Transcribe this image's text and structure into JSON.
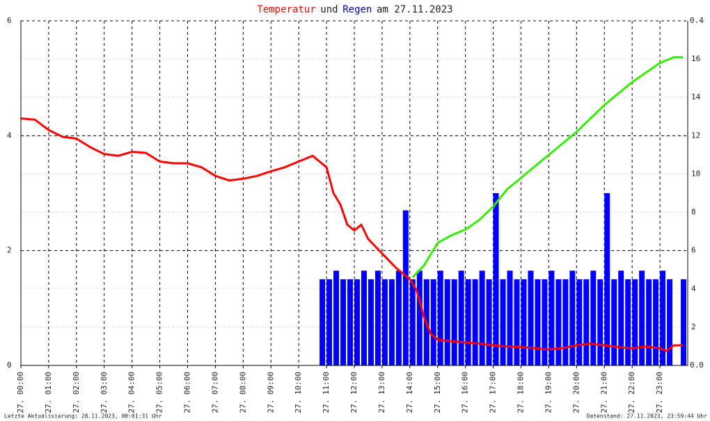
{
  "chart_data": {
    "type": "line",
    "title_connector": "und",
    "title_date": "am 27.11.2023",
    "footer_left": "Letzte Aktualisierung: 28.11.2023, 00:01:31 Uhr",
    "footer_right": "Datenstand: 27.11.2023, 23:59:44 Uhr",
    "xlim": [
      0,
      24
    ],
    "xticks": [
      {
        "value": 0,
        "label": "27. 00:00"
      },
      {
        "value": 1,
        "label": "27. 01:00"
      },
      {
        "value": 2,
        "label": "27. 02:00"
      },
      {
        "value": 3,
        "label": "27. 03:00"
      },
      {
        "value": 4,
        "label": "27. 04:00"
      },
      {
        "value": 5,
        "label": "27. 05:00"
      },
      {
        "value": 6,
        "label": "27. 06:00"
      },
      {
        "value": 7,
        "label": "27. 07:00"
      },
      {
        "value": 8,
        "label": "27. 08:00"
      },
      {
        "value": 9,
        "label": "27. 09:00"
      },
      {
        "value": 10,
        "label": "27. 10:00"
      },
      {
        "value": 11,
        "label": "27. 11:00"
      },
      {
        "value": 12,
        "label": "27. 12:00"
      },
      {
        "value": 13,
        "label": "27. 13:00"
      },
      {
        "value": 14,
        "label": "27. 14:00"
      },
      {
        "value": 15,
        "label": "27. 15:00"
      },
      {
        "value": 16,
        "label": "27. 16:00"
      },
      {
        "value": 17,
        "label": "27. 17:00"
      },
      {
        "value": 18,
        "label": "27. 18:00"
      },
      {
        "value": 19,
        "label": "27. 19:00"
      },
      {
        "value": 20,
        "label": "27. 20:00"
      },
      {
        "value": 21,
        "label": "27. 21:00"
      },
      {
        "value": 22,
        "label": "27. 22:00"
      },
      {
        "value": 23,
        "label": "27. 23:00"
      }
    ],
    "ylim": [
      0,
      6
    ],
    "yticks": [
      0,
      2,
      4,
      6
    ],
    "y2lim": [
      0,
      18
    ],
    "y2ticks": [
      2,
      4,
      6,
      8,
      10,
      12,
      14,
      16
    ],
    "y3lim": [
      0,
      0.4
    ],
    "y3ticks": [
      {
        "value": 0,
        "label": "0.0"
      },
      {
        "value": 0.4,
        "label": "0.4"
      }
    ],
    "grid": true,
    "series": [
      {
        "name": "Temperatur",
        "color": "#ff0000",
        "style": "line",
        "x": [
          0,
          0.5,
          1,
          1.5,
          2,
          2.5,
          3,
          3.5,
          4,
          4.5,
          5,
          5.5,
          6,
          6.5,
          7,
          7.5,
          8,
          8.5,
          9,
          9.5,
          10,
          10.5,
          11,
          11.25,
          11.5,
          11.75,
          12,
          12.25,
          12.5,
          13,
          13.5,
          14,
          14.25,
          14.5,
          14.75,
          15,
          15.5,
          16,
          16.5,
          17,
          17.5,
          18,
          18.5,
          19,
          19.5,
          20,
          20.5,
          21,
          21.5,
          22,
          22.5,
          23,
          23.25,
          23.5,
          23.83
        ],
        "values": [
          4.3,
          4.28,
          4.1,
          3.98,
          3.95,
          3.8,
          3.68,
          3.65,
          3.72,
          3.7,
          3.55,
          3.52,
          3.52,
          3.45,
          3.3,
          3.22,
          3.25,
          3.3,
          3.38,
          3.45,
          3.55,
          3.65,
          3.45,
          3.0,
          2.8,
          2.45,
          2.35,
          2.45,
          2.2,
          1.95,
          1.7,
          1.5,
          1.3,
          0.85,
          0.55,
          0.45,
          0.42,
          0.4,
          0.38,
          0.35,
          0.33,
          0.32,
          0.3,
          0.28,
          0.3,
          0.35,
          0.38,
          0.35,
          0.32,
          0.3,
          0.33,
          0.3,
          0.25,
          0.35,
          0.35
        ]
      },
      {
        "name": "Regen",
        "color": "#0000ff",
        "style": "bar",
        "axis": "y3",
        "x": [
          10.75,
          11,
          11.25,
          11.5,
          11.75,
          12,
          12.25,
          12.5,
          12.75,
          13,
          13.25,
          13.5,
          13.75,
          14,
          14.25,
          14.5,
          14.75,
          15,
          15.25,
          15.5,
          15.75,
          16,
          16.25,
          16.5,
          16.75,
          17,
          17.25,
          17.5,
          17.75,
          18,
          18.25,
          18.5,
          18.75,
          19,
          19.25,
          19.5,
          19.75,
          20,
          20.25,
          20.5,
          20.75,
          21,
          21.25,
          21.5,
          21.75,
          22,
          22.25,
          22.5,
          22.75,
          23,
          23.25,
          23.5,
          23.75
        ],
        "values": [
          0.1,
          0.1,
          0.11,
          0.1,
          0.1,
          0.1,
          0.11,
          0.1,
          0.11,
          0.1,
          0.1,
          0.11,
          0.18,
          0.1,
          0.11,
          0.1,
          0.1,
          0.11,
          0.1,
          0.1,
          0.11,
          0.1,
          0.1,
          0.11,
          0.1,
          0.2,
          0.1,
          0.11,
          0.1,
          0.1,
          0.11,
          0.1,
          0.1,
          0.11,
          0.1,
          0.1,
          0.11,
          0.1,
          0.1,
          0.11,
          0.1,
          0.2,
          0.1,
          0.11,
          0.1,
          0.1,
          0.11,
          0.1,
          0.1,
          0.11,
          0.1,
          0,
          0.1
        ]
      },
      {
        "color": "#33ee00",
        "style": "line",
        "axis": "y2",
        "x": [
          14.1,
          14.5,
          15,
          15.5,
          16,
          16.5,
          17,
          17.5,
          18,
          18.5,
          19,
          19.5,
          20,
          20.5,
          21,
          21.5,
          22,
          22.5,
          23,
          23.5,
          23.83
        ],
        "values": [
          4.6,
          5.2,
          6.4,
          6.8,
          7.1,
          7.6,
          8.3,
          9.2,
          9.8,
          10.4,
          11.0,
          11.6,
          12.2,
          12.9,
          13.6,
          14.2,
          14.8,
          15.3,
          15.8,
          16.1,
          16.1
        ]
      }
    ]
  }
}
